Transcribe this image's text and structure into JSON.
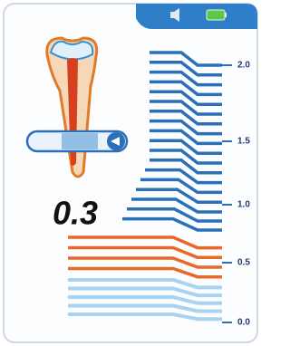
{
  "reading": "0.3",
  "scale": [
    "2.0",
    "1.5",
    "1.0",
    "0.5",
    "0.0"
  ]
}
